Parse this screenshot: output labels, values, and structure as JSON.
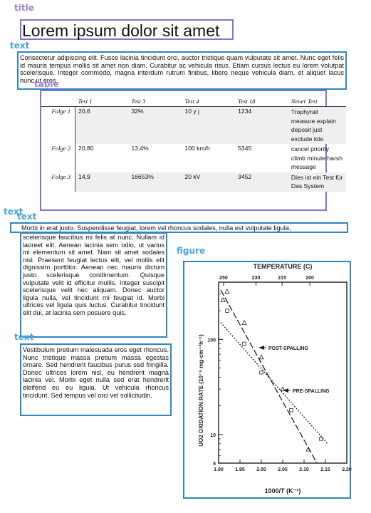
{
  "labels": {
    "title": "title",
    "text": "text",
    "table": "table",
    "figure": "figure"
  },
  "title": "Lorem ipsum dolor sit amet",
  "intro": "Consectetur adipiscing elit. Fusce lacinia tincidunt orci, auctor tristique quam vulputate sit amet. Nunc eget felis id mauris tempus mollis sit amet non diam. Curabitur ac vehicula risus. Etiam cursus lectus eu lorem volutpat scelerisque. Integer commodo, magna interdum rutrum finibus, libero neque vehicula diam, et aliquet lacus nunc ut eros.",
  "table": {
    "headers": [
      "",
      "Test 1",
      "Test 3",
      "Test 4",
      "Test 18",
      "Neuer Test"
    ],
    "rows": [
      {
        "label": "Folge 1",
        "cells": [
          "20,6",
          "32%",
          "10 y j",
          "1234",
          "Trophyrail measure explain deposit just exclude kite"
        ]
      },
      {
        "label": "Folge 2",
        "cells": [
          "20,80",
          "13,4%",
          "100 km/h",
          "5345",
          "cancel priority climb minute harsh message"
        ]
      },
      {
        "label": "Folge 3",
        "cells": [
          "14,9",
          "16653%",
          "20 kV",
          "3452",
          "Dies ist ein Test für Das System"
        ]
      }
    ]
  },
  "wide_line": "Morbi in erat justo. Suspendisse feugiat, lorem vel rhoncus sodales, nulla est vulputate ligula,",
  "col_para1": "scelerisque faucibus mi felis at nunc. Nullam id laoreet elit. Aenean lacinia sem odio, ut varius mi elementum sit amet. Nam sit amet sodales nisl. Praesent feugiat lectus elit, vel mollis elit dignissim porttitor. Aenean nec mauris dictum justo scelerisque condimentum. Quisque vulputate velit id efficitur mollis. Integer suscipit scelerisque velit nec aliquam. Donec auctor ligula nulla, vel tincidunt mi feugiat id. Morbi ultrices vel ligula quis luctus. Curabitur tincidunt elit dui, at lacinia sem posuere quis.",
  "col_para2": "Vestibulum pretium malesuada eros eget rhoncus. Nunc tristique massa pretium massa egestas ornare. Sed hendrerit faucibus purus sed fringilla. Donec ultrices lorem nisl, eu hendrerit magna lacinia vel. Morbi eget nulla sed erat hendrerit eleifend eu eu ligula. Ut vehicula rhoncus tincidunt. Sed tempus vel orci vel sollicitudin.",
  "figure": {
    "top_label": "TEMPERATURE (C)",
    "top_ticks": [
      "250",
      "230",
      "215",
      "200"
    ],
    "y_label": "UO2 OXIDATION RATE (10⁻⁵ mg·cm⁻²h⁻¹)",
    "y_ticks": [
      "100",
      "10",
      "5"
    ],
    "x_ticks": [
      "1.90",
      "1.95",
      "2.00",
      "2.05",
      "2.10",
      "2.15",
      "2.20"
    ],
    "x_label": "1000/T (K⁻¹)",
    "annotations": {
      "post": "POST-SPALLING",
      "pre": "PRE-SPALLING"
    },
    "colors": {
      "ink": "#222222"
    }
  },
  "chart_data": {
    "type": "scatter",
    "title": "TEMPERATURE (C)",
    "xlabel": "1000/T (K⁻¹)",
    "ylabel": "UO2 OXIDATION RATE (10⁻⁵ mg·cm⁻²h⁻¹)",
    "xlim": [
      1.9,
      2.2
    ],
    "ylim": [
      5,
      400
    ],
    "yscale": "log",
    "grid": false,
    "series": [
      {
        "name": "POST-SPALLING",
        "marker": "triangle",
        "points": [
          [
            1.91,
            260
          ],
          [
            1.92,
            320
          ],
          [
            1.96,
            150
          ],
          [
            2.0,
            65
          ],
          [
            2.05,
            30
          ],
          [
            2.11,
            7
          ]
        ]
      },
      {
        "name": "PRE-SPALLING",
        "marker": "square",
        "points": [
          [
            1.92,
            200
          ],
          [
            1.96,
            90
          ],
          [
            2.0,
            45
          ],
          [
            2.07,
            18
          ],
          [
            2.14,
            9
          ]
        ]
      }
    ],
    "fits": [
      {
        "name": "POST-SPALLING",
        "from": [
          1.905,
          330
        ],
        "to": [
          2.13,
          5
        ]
      },
      {
        "name": "PRE-SPALLING",
        "from": [
          1.905,
          150
        ],
        "to": [
          2.155,
          8
        ]
      }
    ]
  }
}
